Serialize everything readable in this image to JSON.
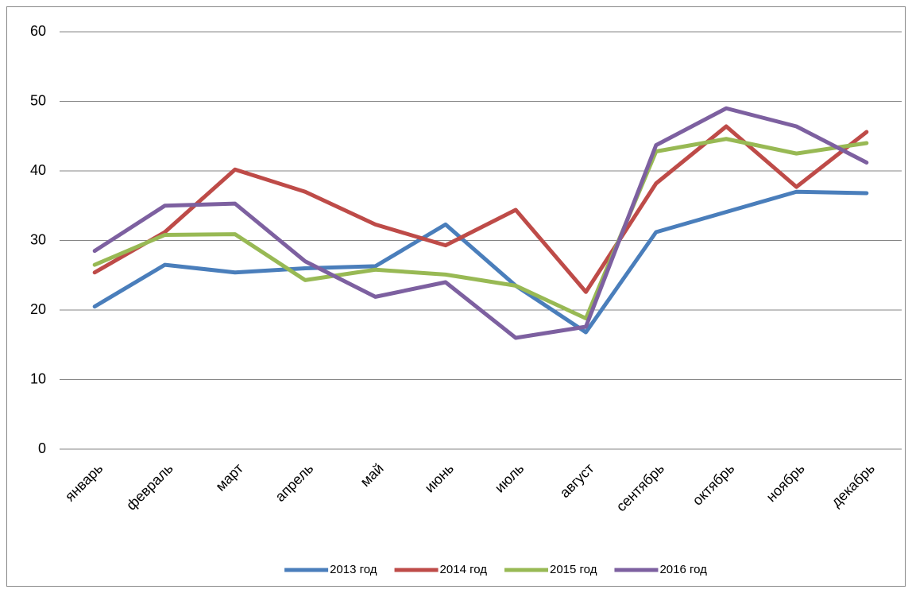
{
  "chart_data": {
    "type": "line",
    "categories": [
      "январь",
      "февраль",
      "март",
      "апрель",
      "май",
      "июнь",
      "июль",
      "август",
      "сентябрь",
      "октябрь",
      "ноябрь",
      "декабрь"
    ],
    "series": [
      {
        "name": "2013 год",
        "color": "#4a7ebb",
        "values": [
          20.5,
          26.5,
          25.4,
          26,
          26.3,
          32.3,
          23.5,
          16.8,
          31.2,
          34.1,
          37,
          36.8
        ]
      },
      {
        "name": "2014 год",
        "color": "#be4b48",
        "values": [
          25.4,
          31.2,
          40.2,
          37,
          32.3,
          29.3,
          34.4,
          22.6,
          38.2,
          46.4,
          37.7,
          45.6
        ]
      },
      {
        "name": "2015 год",
        "color": "#98b954",
        "values": [
          26.5,
          30.8,
          30.9,
          24.3,
          25.8,
          25.1,
          23.5,
          18.8,
          42.8,
          44.6,
          42.5,
          44
        ]
      },
      {
        "name": "2016 год",
        "color": "#7d60a0",
        "values": [
          28.5,
          35,
          35.3,
          27,
          21.9,
          24,
          16,
          17.6,
          43.7,
          49,
          46.4,
          41.2
        ]
      }
    ],
    "ylim": [
      0,
      60
    ],
    "yticks": [
      0,
      10,
      20,
      30,
      40,
      50,
      60
    ],
    "grid": true,
    "legend": "bottom"
  }
}
